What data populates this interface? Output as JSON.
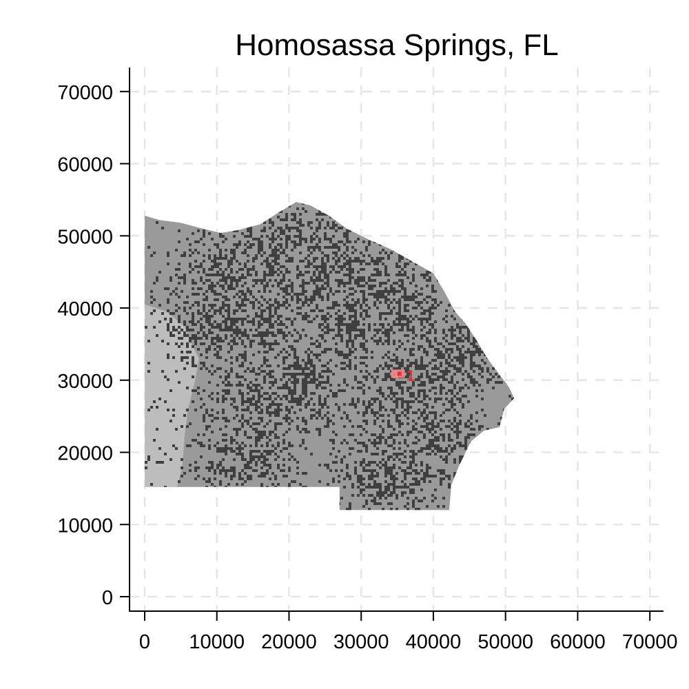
{
  "chart_data": {
    "type": "map",
    "title": "Homosassa Springs, FL",
    "xlabel": "",
    "ylabel": "",
    "xlim": [
      0,
      70000
    ],
    "ylim": [
      0,
      70000
    ],
    "x_ticks": [
      0,
      10000,
      20000,
      30000,
      40000,
      50000,
      60000,
      70000
    ],
    "y_ticks": [
      0,
      10000,
      20000,
      30000,
      40000,
      50000,
      60000,
      70000
    ],
    "grid": true,
    "region_boundary": [
      [
        0,
        52800
      ],
      [
        2000,
        52200
      ],
      [
        5000,
        51800
      ],
      [
        8000,
        51000
      ],
      [
        10500,
        50400
      ],
      [
        13000,
        50800
      ],
      [
        16000,
        51600
      ],
      [
        18500,
        53200
      ],
      [
        21000,
        54700
      ],
      [
        23000,
        54200
      ],
      [
        25500,
        52800
      ],
      [
        28000,
        51000
      ],
      [
        31000,
        49500
      ],
      [
        34000,
        48200
      ],
      [
        37000,
        46500
      ],
      [
        40000,
        44800
      ],
      [
        41500,
        42300
      ],
      [
        43000,
        39500
      ],
      [
        44500,
        37800
      ],
      [
        46000,
        35500
      ],
      [
        47500,
        33000
      ],
      [
        49000,
        31000
      ],
      [
        50500,
        29000
      ],
      [
        51200,
        27500
      ],
      [
        49800,
        26000
      ],
      [
        49200,
        23500
      ],
      [
        47000,
        23000
      ],
      [
        45200,
        21500
      ],
      [
        43500,
        18000
      ],
      [
        42500,
        15500
      ],
      [
        42200,
        12000
      ],
      [
        27000,
        12000
      ],
      [
        27000,
        15200
      ],
      [
        0,
        15200
      ]
    ],
    "light_patches": [
      [
        [
          0,
          40500
        ],
        [
          3000,
          39500
        ],
        [
          5500,
          37500
        ],
        [
          6500,
          35000
        ],
        [
          7500,
          33000
        ],
        [
          7000,
          30000
        ],
        [
          6000,
          26000
        ],
        [
          5500,
          22000
        ],
        [
          5200,
          18000
        ],
        [
          4500,
          15200
        ],
        [
          0,
          15200
        ]
      ],
      [
        [
          0,
          29000
        ],
        [
          2500,
          28500
        ],
        [
          4000,
          27000
        ],
        [
          3500,
          24000
        ],
        [
          2500,
          22000
        ],
        [
          0,
          21500
        ]
      ]
    ],
    "dense_centers": [
      [
        22000,
        43000
      ],
      [
        16000,
        37000
      ],
      [
        27000,
        46000
      ],
      [
        32000,
        43000
      ],
      [
        36000,
        39000
      ],
      [
        15000,
        27000
      ],
      [
        14500,
        20000
      ],
      [
        22000,
        30000
      ],
      [
        35500,
        27500
      ],
      [
        37500,
        31000
      ],
      [
        40000,
        22000
      ],
      [
        33000,
        17000
      ],
      [
        11000,
        45000
      ],
      [
        19000,
        48500
      ],
      [
        43000,
        33000
      ],
      [
        28000,
        38000
      ],
      [
        9500,
        38000
      ],
      [
        25500,
        49000
      ]
    ],
    "points": [
      {
        "label": "1",
        "x": 35300,
        "y": 30800
      }
    ],
    "colors": {
      "region": "#9a9a9a",
      "light": "#bdbdbd",
      "dense": "#3f3f3f",
      "marker": "#e8303a",
      "marker_fill": "#f28a8a",
      "grid": "#e6e6e6",
      "axis": "#000000"
    }
  }
}
